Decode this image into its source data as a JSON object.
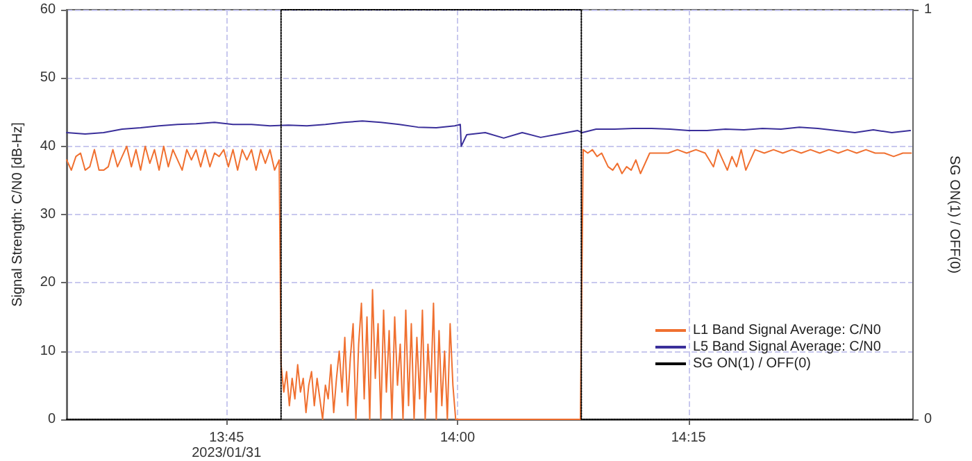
{
  "chart_data": {
    "type": "line",
    "ylabel": "Signal Strength: C/N0 [dB-Hz]",
    "y2label": "SG ON(1) / OFF(0)",
    "xlim": [
      13.577,
      14.493
    ],
    "xticks": [
      {
        "value": 13.75,
        "label": "13:45\n2023/01/31"
      },
      {
        "value": 14.0,
        "label": "14:00"
      },
      {
        "value": 14.25,
        "label": "14:15"
      }
    ],
    "ylim": [
      0,
      60
    ],
    "yticks": [
      0,
      10,
      20,
      30,
      40,
      50,
      60
    ],
    "y2lim": [
      0,
      1
    ],
    "y2ticks": [
      0,
      1
    ],
    "grid": true,
    "legend": "bottom right",
    "marker": "none",
    "series": [
      {
        "name": "L1 Band Signal Average: C/N0",
        "color": "#f07030",
        "x": [
          13.577,
          13.582,
          13.587,
          13.592,
          13.597,
          13.602,
          13.607,
          13.612,
          13.617,
          13.622,
          13.627,
          13.632,
          13.637,
          13.642,
          13.647,
          13.652,
          13.657,
          13.662,
          13.667,
          13.672,
          13.677,
          13.682,
          13.687,
          13.692,
          13.697,
          13.702,
          13.707,
          13.712,
          13.717,
          13.722,
          13.727,
          13.732,
          13.737,
          13.742,
          13.747,
          13.752,
          13.757,
          13.762,
          13.767,
          13.772,
          13.777,
          13.782,
          13.787,
          13.792,
          13.797,
          13.802,
          13.807,
          13.809,
          13.812,
          13.815,
          13.818,
          13.821,
          13.824,
          13.827,
          13.83,
          13.833,
          13.836,
          13.839,
          13.842,
          13.845,
          13.848,
          13.851,
          13.854,
          13.857,
          13.86,
          13.863,
          13.866,
          13.869,
          13.872,
          13.875,
          13.878,
          13.881,
          13.884,
          13.887,
          13.89,
          13.893,
          13.896,
          13.899,
          13.902,
          13.905,
          13.908,
          13.911,
          13.914,
          13.917,
          13.92,
          13.923,
          13.926,
          13.929,
          13.932,
          13.935,
          13.938,
          13.941,
          13.944,
          13.947,
          13.95,
          13.953,
          13.956,
          13.959,
          13.962,
          13.965,
          13.968,
          13.971,
          13.974,
          13.977,
          13.98,
          13.983,
          13.986,
          13.989,
          13.992,
          13.995,
          13.998,
          14.05,
          14.1,
          14.133,
          14.136,
          14.141,
          14.146,
          14.151,
          14.156,
          14.163,
          14.168,
          14.173,
          14.178,
          14.183,
          14.188,
          14.193,
          14.198,
          14.203,
          14.208,
          14.218,
          14.228,
          14.238,
          14.248,
          14.258,
          14.268,
          14.277,
          14.282,
          14.287,
          14.292,
          14.297,
          14.302,
          14.307,
          14.312,
          14.317,
          14.322,
          14.332,
          14.342,
          14.352,
          14.362,
          14.372,
          14.382,
          14.392,
          14.402,
          14.412,
          14.422,
          14.432,
          14.442,
          14.452,
          14.462,
          14.472,
          14.482,
          14.491
        ],
        "values": [
          38,
          36.5,
          38.5,
          39,
          36.5,
          37,
          39.5,
          36.5,
          36.5,
          37,
          39.5,
          37,
          38.5,
          40,
          37,
          39.5,
          36.5,
          40,
          37.5,
          39.5,
          36.5,
          40,
          37,
          39.5,
          38,
          36.5,
          39.5,
          38,
          39.5,
          37,
          39.5,
          37,
          39,
          38.5,
          39.5,
          37,
          39.5,
          36.5,
          39.5,
          38,
          39.5,
          36.5,
          39.5,
          37.5,
          39.5,
          36.5,
          38,
          8,
          4,
          7,
          2,
          6,
          3,
          8,
          4,
          6,
          1,
          5,
          7,
          2,
          6,
          3,
          0,
          5,
          3,
          8,
          1,
          6,
          10,
          4,
          12,
          2,
          9,
          14,
          0,
          11,
          17,
          3,
          15,
          0,
          19,
          6,
          14,
          0,
          16,
          4,
          13,
          0,
          15,
          5,
          11,
          0,
          16,
          2,
          14,
          0,
          12,
          3,
          16,
          0,
          11,
          4,
          17,
          0,
          13,
          2,
          10,
          0,
          14,
          5,
          0,
          0,
          0,
          0,
          39.5,
          39,
          39.5,
          38.5,
          39,
          37,
          36.5,
          37.5,
          36,
          37,
          36.5,
          38,
          36,
          37.5,
          39,
          39,
          39,
          39.5,
          39,
          39.5,
          39,
          37,
          39.5,
          38,
          36.5,
          38.5,
          37,
          39.5,
          36.5,
          38,
          39.5,
          39,
          39.5,
          39,
          39.5,
          39,
          39.5,
          39,
          39.5,
          39,
          39.5,
          39,
          39.5,
          39,
          39,
          38.5,
          39,
          39
        ]
      },
      {
        "name": "L5 Band Signal Average: C/N0",
        "color": "#3a2f9a",
        "x": [
          13.577,
          13.597,
          13.617,
          13.637,
          13.657,
          13.677,
          13.697,
          13.717,
          13.737,
          13.757,
          13.777,
          13.797,
          13.817,
          13.837,
          13.857,
          13.877,
          13.897,
          13.917,
          13.937,
          13.957,
          13.977,
          13.997,
          14.003,
          14.004,
          14.01,
          14.03,
          14.05,
          14.07,
          14.09,
          14.11,
          14.13,
          14.135,
          14.15,
          14.17,
          14.19,
          14.21,
          14.23,
          14.25,
          14.27,
          14.29,
          14.31,
          14.33,
          14.35,
          14.37,
          14.39,
          14.41,
          14.43,
          14.45,
          14.47,
          14.49
        ],
        "values": [
          42,
          41.8,
          42,
          42.5,
          42.7,
          43,
          43.2,
          43.3,
          43.5,
          43.2,
          43.2,
          43,
          43.1,
          43,
          43.2,
          43.5,
          43.7,
          43.5,
          43.2,
          42.8,
          42.7,
          43,
          43.2,
          40,
          41.7,
          42,
          41.2,
          42,
          41.3,
          41.8,
          42.3,
          42,
          42.5,
          42.5,
          42.6,
          42.6,
          42.5,
          42.3,
          42.3,
          42.5,
          42.4,
          42.6,
          42.5,
          42.8,
          42.6,
          42.3,
          42,
          42.4,
          42,
          42.3
        ]
      },
      {
        "name": "SG ON(1) / OFF(0)",
        "color": "#000000",
        "axis": "y2",
        "line_style": "dotted",
        "x": [
          13.577,
          13.809,
          13.809,
          14.134,
          14.134,
          14.493
        ],
        "values": [
          0,
          0,
          1,
          1,
          0,
          0
        ]
      }
    ]
  }
}
